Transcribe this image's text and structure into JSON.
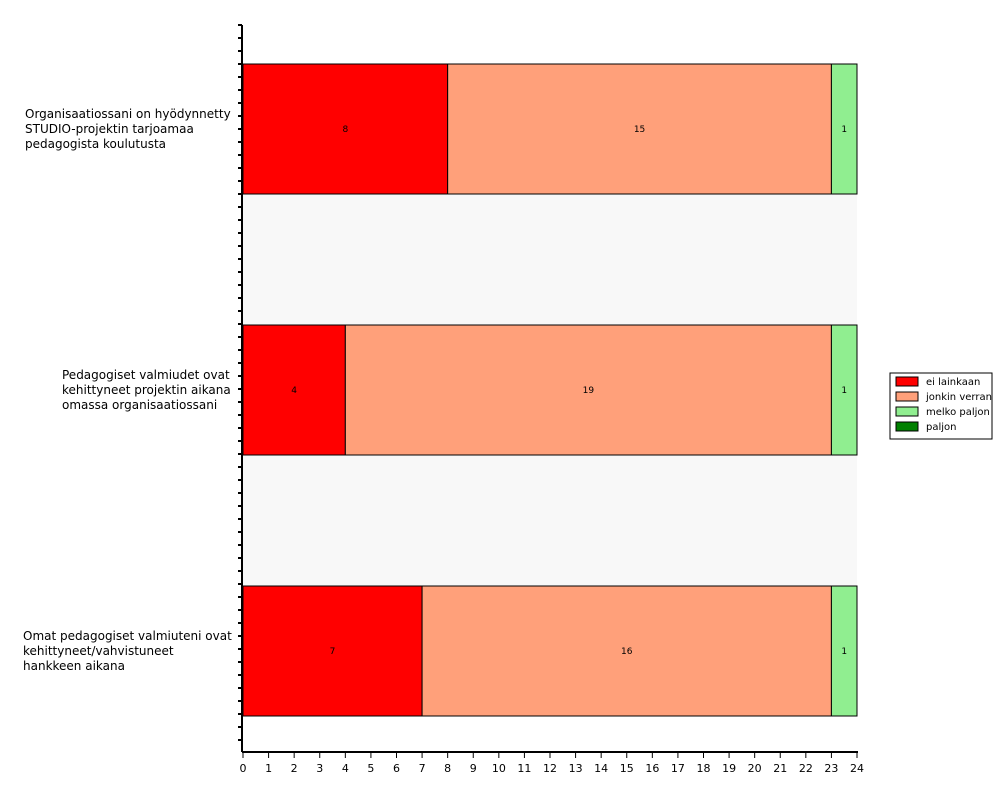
{
  "chart_data": {
    "type": "bar",
    "orientation": "horizontal",
    "stacked": true,
    "categories": [
      [
        "Organisaatiossani on hyödynnetty",
        "STUDIO-projektin tarjoamaa",
        "pedagogista koulutusta"
      ],
      [
        "Pedagogiset valmiudet ovat",
        "kehittyneet projektin aikana",
        "omassa organisaatiossani"
      ],
      [
        "Omat pedagogiset valmiuteni ovat",
        "kehittyneet/vahvistuneet",
        "hankkeen aikana"
      ]
    ],
    "series": [
      {
        "name": "ei lainkaan",
        "color": "#ff0000",
        "values": [
          8,
          4,
          7
        ]
      },
      {
        "name": "jonkin verran",
        "color": "#ffa07a",
        "values": [
          15,
          19,
          16
        ]
      },
      {
        "name": "melko paljon",
        "color": "#90ee90",
        "values": [
          1,
          1,
          1
        ]
      },
      {
        "name": "paljon",
        "color": "#008000",
        "values": [
          0,
          0,
          0
        ]
      }
    ],
    "xlim": [
      0,
      24
    ],
    "x_ticks": [
      "0",
      "1",
      "2",
      "3",
      "4",
      "5",
      "6",
      "7",
      "8",
      "9",
      "10",
      "11",
      "12",
      "13",
      "14",
      "15",
      "16",
      "17",
      "18",
      "19",
      "20",
      "21",
      "22",
      "23",
      "24"
    ],
    "legend_position": "right",
    "band_colors": [
      "#ffffff",
      "#f8f8f8"
    ]
  }
}
